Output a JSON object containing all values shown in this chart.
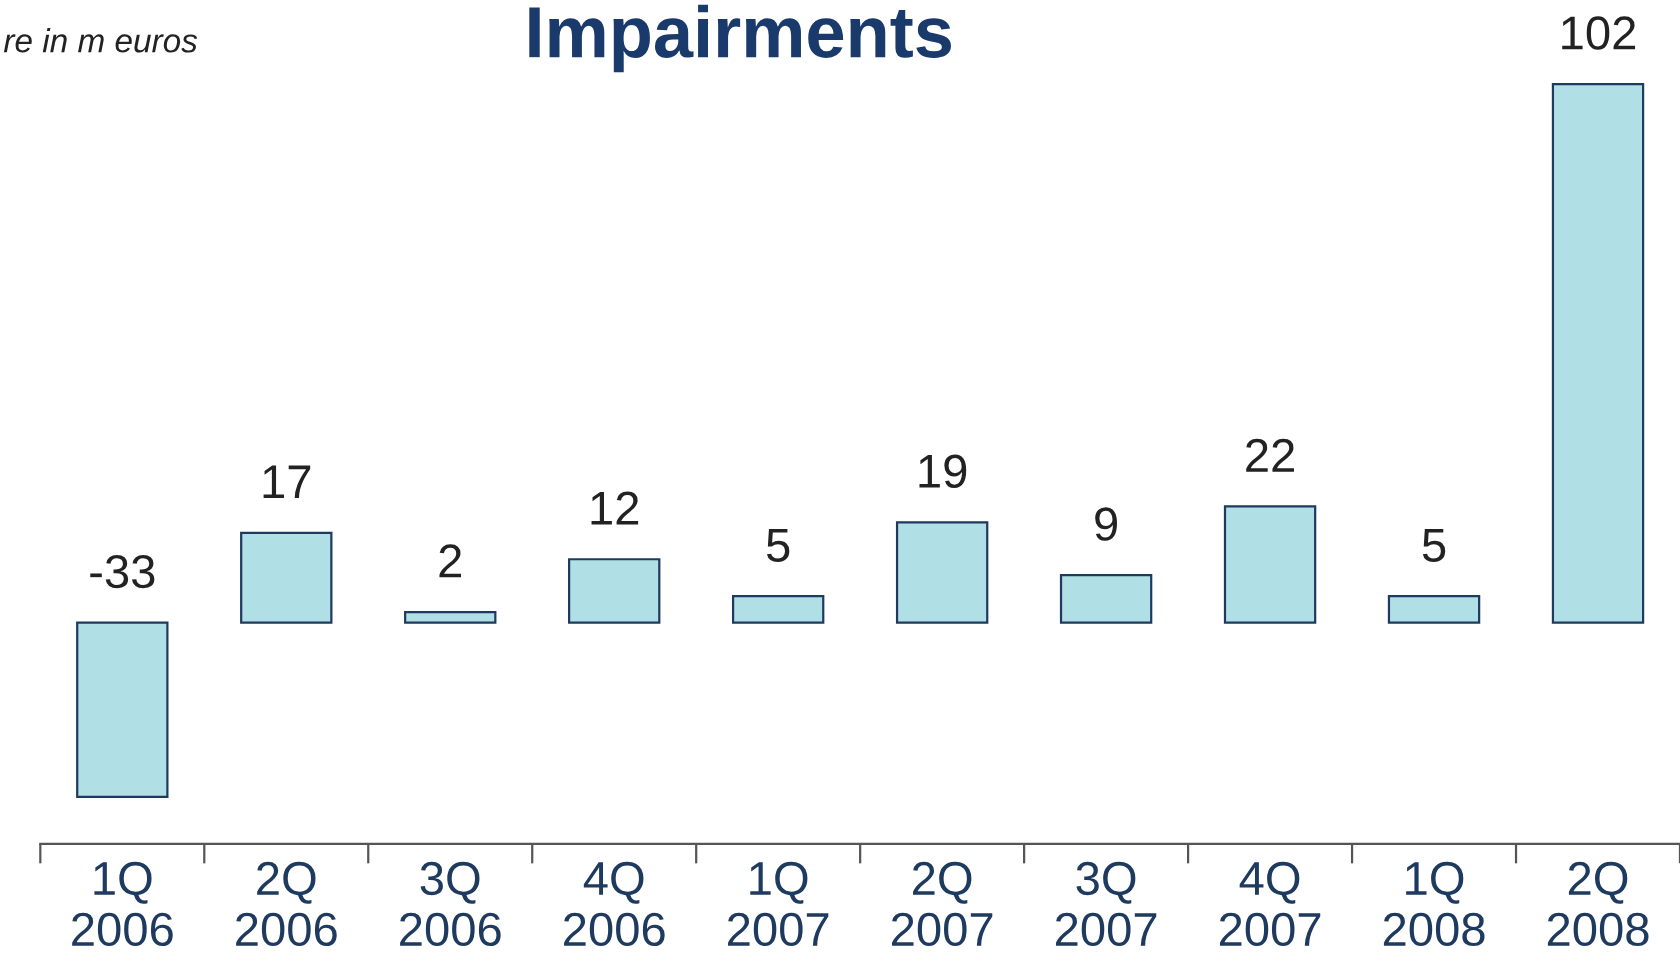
{
  "chart_data": {
    "type": "bar",
    "title": "Impairments",
    "annotations": [
      "re in m euros"
    ],
    "categories": [
      "1Q\n2006",
      "2Q\n2006",
      "3Q\n2006",
      "4Q\n2006",
      "1Q\n2007",
      "2Q\n2007",
      "3Q\n2007",
      "4Q\n2007",
      "1Q\n2008",
      "2Q\n2008"
    ],
    "values": [
      -33,
      17,
      2,
      12,
      5,
      19,
      9,
      22,
      5,
      102
    ],
    "color": "#b0dfe5",
    "data_labels": true,
    "grid": false,
    "legend": false
  }
}
